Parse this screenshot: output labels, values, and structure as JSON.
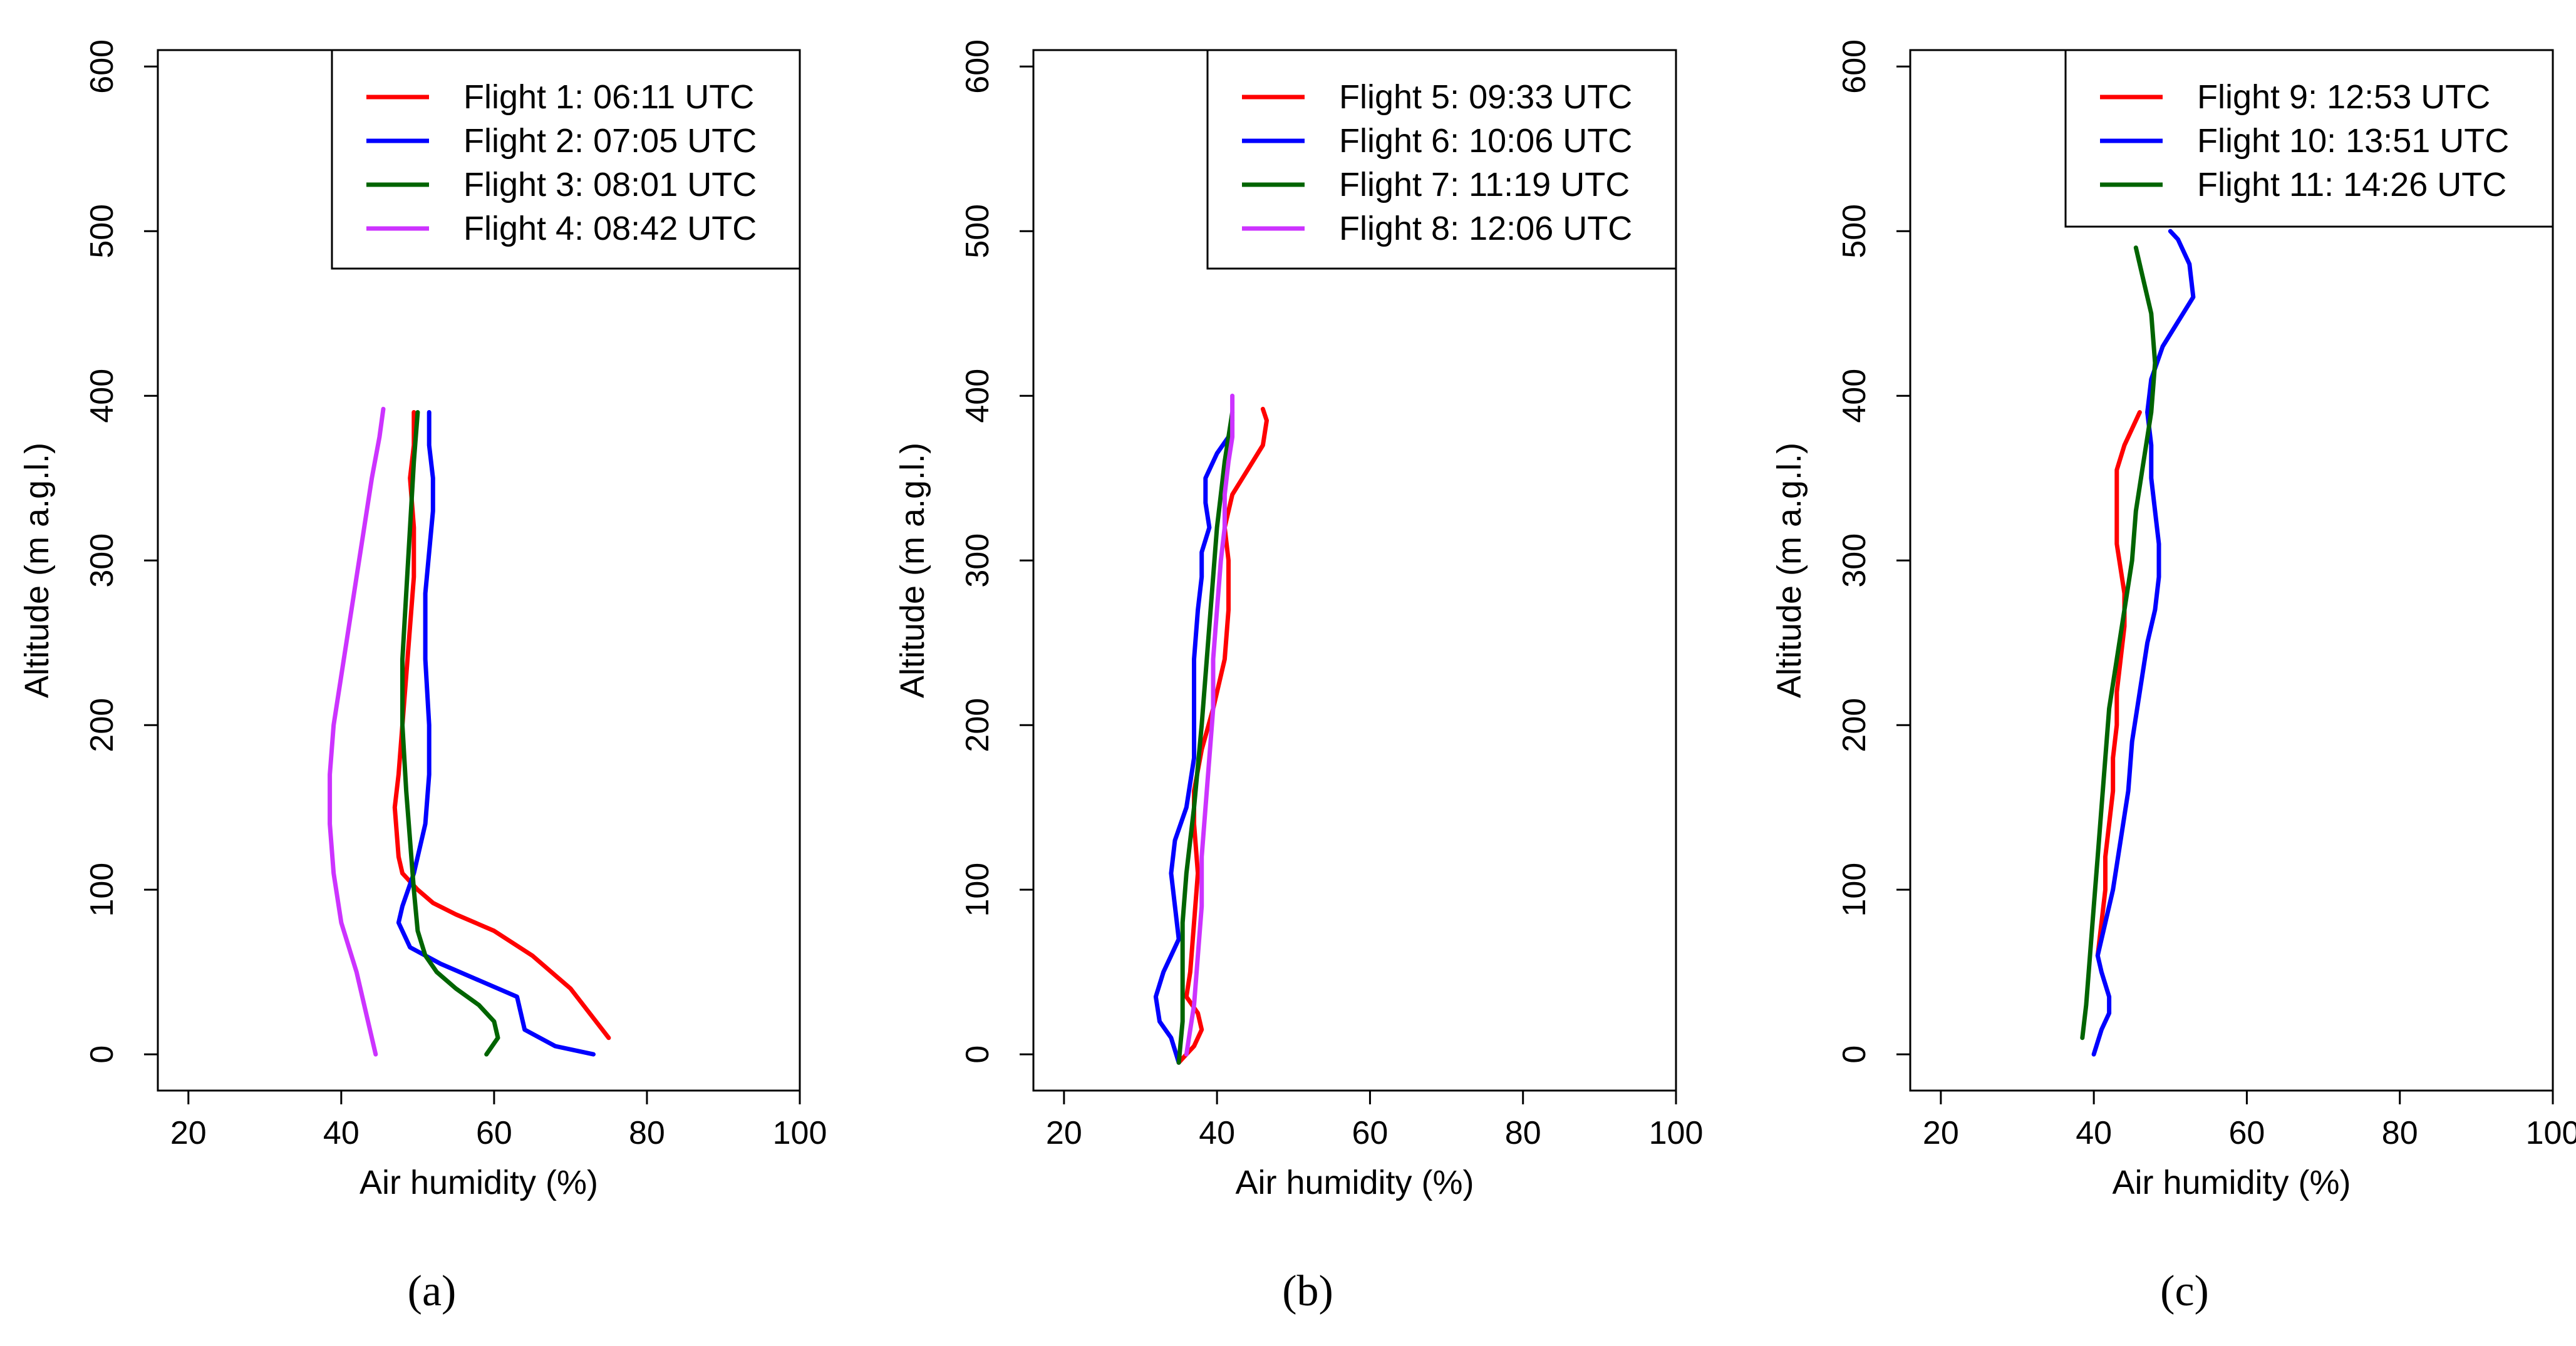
{
  "chart_data": [
    {
      "type": "line",
      "panel_label": "(a)",
      "xlabel": "Air humidity (%)",
      "ylabel": "Altitude (m a.g.l.)",
      "xlim": [
        16,
        100
      ],
      "ylim": [
        -22,
        610
      ],
      "xticks": [
        "20",
        "40",
        "60",
        "80",
        "100"
      ],
      "yticks": [
        "0",
        "100",
        "200",
        "300",
        "400",
        "500",
        "600"
      ],
      "legend_position": "top-right",
      "series": [
        {
          "name": "Flight 1: 06:11 UTC",
          "color": "#ff0000",
          "x": [
            75,
            70,
            65,
            60,
            55,
            52,
            50,
            48,
            47.5,
            47,
            47.5,
            48,
            48.5,
            49,
            49.5,
            49.5,
            49,
            49.5,
            49.5
          ],
          "y": [
            10,
            40,
            60,
            75,
            85,
            92,
            100,
            110,
            120,
            150,
            170,
            200,
            230,
            260,
            290,
            320,
            350,
            370,
            390
          ]
        },
        {
          "name": "Flight 2: 07:05 UTC",
          "color": "#0000ff",
          "x": [
            73,
            68,
            64,
            63,
            58,
            53,
            49,
            47.5,
            48,
            49.5,
            51,
            51.5,
            51.5,
            51,
            51,
            52,
            52,
            51.5,
            51.5
          ],
          "y": [
            0,
            5,
            15,
            35,
            45,
            55,
            65,
            80,
            90,
            110,
            140,
            170,
            200,
            240,
            280,
            330,
            350,
            370,
            390
          ]
        },
        {
          "name": "Flight 3: 08:01 UTC",
          "color": "#006400",
          "x": [
            59,
            60.5,
            60,
            58,
            55,
            52.5,
            51,
            50,
            49.5,
            49,
            48.5,
            48,
            48,
            48.5,
            49,
            49.5,
            50
          ],
          "y": [
            0,
            10,
            20,
            30,
            40,
            50,
            60,
            75,
            100,
            130,
            160,
            200,
            240,
            280,
            320,
            360,
            390
          ]
        },
        {
          "name": "Flight 4: 08:42 UTC",
          "color": "#cc33ff",
          "x": [
            44.5,
            43.5,
            42,
            40,
            39,
            38.5,
            38.5,
            39,
            40,
            41,
            42,
            43,
            44,
            45,
            45.5
          ],
          "y": [
            0,
            20,
            50,
            80,
            110,
            140,
            170,
            200,
            230,
            260,
            290,
            320,
            350,
            375,
            392
          ]
        }
      ]
    },
    {
      "type": "line",
      "panel_label": "(b)",
      "xlabel": "Air humidity (%)",
      "ylabel": "Altitude (m a.g.l.)",
      "xlim": [
        16,
        100
      ],
      "ylim": [
        -22,
        610
      ],
      "xticks": [
        "20",
        "40",
        "60",
        "80",
        "100"
      ],
      "yticks": [
        "0",
        "100",
        "200",
        "300",
        "400",
        "500",
        "600"
      ],
      "legend_position": "top-right",
      "series": [
        {
          "name": "Flight 5: 09:33 UTC",
          "color": "#ff0000",
          "x": [
            35,
            37,
            38,
            37.5,
            36,
            36.5,
            37,
            37.5,
            37,
            37,
            38,
            39.5,
            41,
            41.5,
            41.5,
            41,
            42,
            44,
            46,
            46.5,
            46
          ],
          "y": [
            -5,
            5,
            15,
            25,
            35,
            50,
            80,
            110,
            140,
            160,
            185,
            210,
            240,
            270,
            300,
            320,
            340,
            355,
            370,
            385,
            392
          ]
        },
        {
          "name": "Flight 6: 10:06 UTC",
          "color": "#0000ff",
          "x": [
            35,
            34,
            32.5,
            32,
            33,
            34,
            35,
            34.5,
            34,
            34.5,
            36,
            37,
            37,
            37,
            37.5,
            38,
            38,
            39,
            38.5,
            38.5,
            40,
            41.5,
            42
          ],
          "y": [
            -5,
            10,
            20,
            35,
            50,
            60,
            70,
            90,
            110,
            130,
            150,
            180,
            210,
            240,
            270,
            290,
            305,
            320,
            335,
            350,
            365,
            375,
            385
          ]
        },
        {
          "name": "Flight 7: 11:19 UTC",
          "color": "#006400",
          "x": [
            35,
            35.5,
            35.5,
            35.5,
            36,
            36.5,
            37,
            37.5,
            38,
            38.5,
            39,
            39.5,
            40,
            40.5,
            41,
            41.5,
            42
          ],
          "y": [
            -5,
            20,
            50,
            80,
            110,
            130,
            150,
            175,
            200,
            230,
            260,
            290,
            320,
            340,
            360,
            375,
            390
          ]
        },
        {
          "name": "Flight 8: 12:06 UTC",
          "color": "#cc33ff",
          "x": [
            36,
            37,
            37.5,
            38,
            38,
            38.5,
            39,
            39.5,
            39.5,
            40,
            40.5,
            41,
            41,
            41.5,
            42,
            42,
            42
          ],
          "y": [
            0,
            30,
            60,
            90,
            120,
            150,
            180,
            210,
            240,
            270,
            300,
            320,
            340,
            360,
            375,
            385,
            400
          ]
        }
      ]
    },
    {
      "type": "line",
      "panel_label": "(c)",
      "xlabel": "Air humidity (%)",
      "ylabel": "Altitude (m a.g.l.)",
      "xlim": [
        16,
        100
      ],
      "ylim": [
        -22,
        610
      ],
      "xticks": [
        "20",
        "40",
        "60",
        "80",
        "100"
      ],
      "yticks": [
        "0",
        "100",
        "200",
        "300",
        "400",
        "500",
        "600"
      ],
      "legend_position": "top-right",
      "series": [
        {
          "name": "Flight 9: 12:53 UTC",
          "color": "#ff0000",
          "x": [
            40.5,
            41,
            41.5,
            41.5,
            42,
            42.5,
            42.5,
            43,
            43,
            43.5,
            44,
            44,
            43.5,
            43,
            43,
            43,
            43,
            44,
            45,
            46
          ],
          "y": [
            60,
            80,
            100,
            120,
            140,
            160,
            180,
            200,
            220,
            240,
            260,
            280,
            295,
            310,
            325,
            340,
            355,
            370,
            380,
            390
          ]
        },
        {
          "name": "Flight 10: 13:51 UTC",
          "color": "#0000ff",
          "x": [
            40,
            41,
            42,
            42,
            41,
            40.5,
            41.5,
            42.5,
            43.5,
            44.5,
            45,
            46,
            47,
            48,
            48.5,
            48.5,
            48,
            47.5,
            47.5,
            47,
            47.5,
            49,
            51,
            53,
            52.5,
            51,
            50
          ],
          "y": [
            0,
            15,
            25,
            35,
            50,
            60,
            80,
            100,
            130,
            160,
            190,
            220,
            250,
            270,
            290,
            310,
            330,
            350,
            370,
            390,
            410,
            430,
            445,
            460,
            480,
            495,
            500
          ]
        },
        {
          "name": "Flight 11: 14:26 UTC",
          "color": "#006400",
          "x": [
            38.5,
            39,
            39.5,
            40,
            40.5,
            41,
            41.5,
            42,
            43,
            44,
            45,
            45.5,
            46.5,
            47.5,
            48,
            47.5,
            46.5,
            45.5
          ],
          "y": [
            10,
            30,
            60,
            90,
            120,
            150,
            180,
            210,
            240,
            270,
            300,
            330,
            360,
            390,
            420,
            450,
            470,
            490
          ]
        }
      ]
    }
  ]
}
